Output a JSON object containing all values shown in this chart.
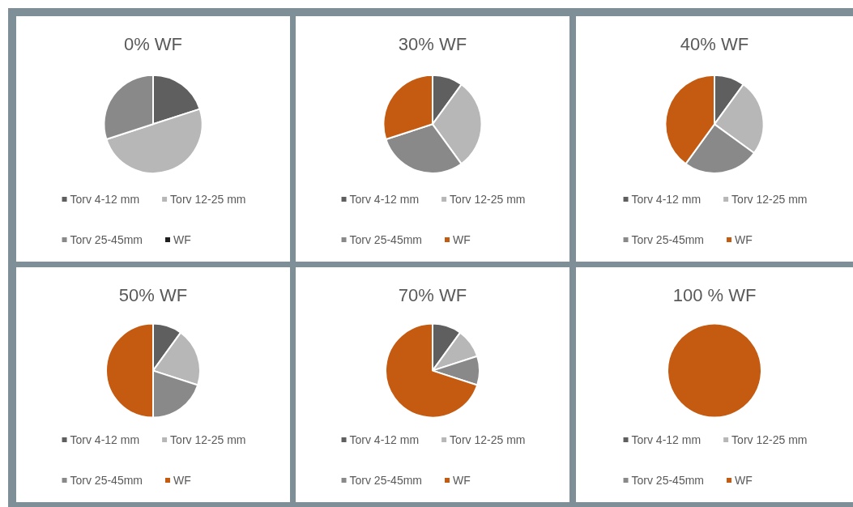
{
  "chart_data": [
    {
      "type": "pie",
      "title": "0% WF",
      "categories": [
        "Torv 4-12 mm",
        "Torv 12-25 mm",
        "Torv 25-45mm",
        "WF"
      ],
      "values": [
        20,
        50,
        30,
        0
      ],
      "colors": [
        "#5f5f5f",
        "#b7b7b7",
        "#898989",
        "#1f1f1f"
      ],
      "legend": "bottom"
    },
    {
      "type": "pie",
      "title": "30% WF",
      "categories": [
        "Torv 4-12 mm",
        "Torv 12-25 mm",
        "Torv 25-45mm",
        "WF"
      ],
      "values": [
        10,
        30,
        30,
        30
      ],
      "colors": [
        "#5f5f5f",
        "#b7b7b7",
        "#898989",
        "#c55a11"
      ],
      "legend": "bottom"
    },
    {
      "type": "pie",
      "title": "40% WF",
      "categories": [
        "Torv 4-12 mm",
        "Torv 12-25 mm",
        "Torv 25-45mm",
        "WF"
      ],
      "values": [
        10,
        25,
        25,
        40
      ],
      "colors": [
        "#5f5f5f",
        "#b7b7b7",
        "#898989",
        "#c55a11"
      ],
      "legend": "bottom"
    },
    {
      "type": "pie",
      "title": "50% WF",
      "categories": [
        "Torv 4-12 mm",
        "Torv 12-25 mm",
        "Torv 25-45mm",
        "WF"
      ],
      "values": [
        10,
        20,
        20,
        50
      ],
      "colors": [
        "#5f5f5f",
        "#b7b7b7",
        "#898989",
        "#c55a11"
      ],
      "legend": "bottom"
    },
    {
      "type": "pie",
      "title": "70% WF",
      "categories": [
        "Torv 4-12 mm",
        "Torv 12-25 mm",
        "Torv 25-45mm",
        "WF"
      ],
      "values": [
        10,
        10,
        10,
        70
      ],
      "colors": [
        "#5f5f5f",
        "#b7b7b7",
        "#898989",
        "#c55a11"
      ],
      "legend": "bottom"
    },
    {
      "type": "pie",
      "title": "100 % WF",
      "categories": [
        "Torv 4-12 mm",
        "Torv 12-25 mm",
        "Torv 25-45mm",
        "WF"
      ],
      "values": [
        0,
        0,
        0,
        100
      ],
      "colors": [
        "#5f5f5f",
        "#b7b7b7",
        "#898989",
        "#c55a11"
      ],
      "legend": "bottom"
    }
  ]
}
